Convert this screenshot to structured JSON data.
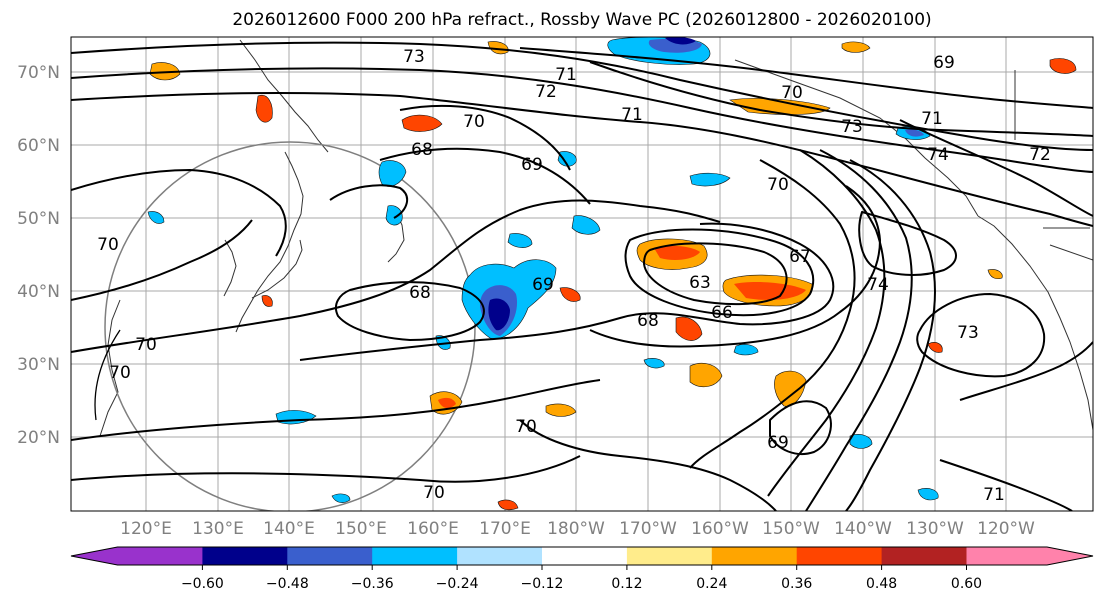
{
  "figure": {
    "title": "2026012600 F000 200 hPa refract., Rossby Wave PC (2026012800 - 2026020100)"
  },
  "axes": {
    "lat_labels": [
      "70°N",
      "60°N",
      "50°N",
      "40°N",
      "30°N",
      "20°N"
    ],
    "lon_labels": [
      "120°E",
      "130°E",
      "140°E",
      "150°E",
      "160°E",
      "170°E",
      "180°W",
      "170°W",
      "160°W",
      "150°W",
      "140°W",
      "130°W",
      "120°W"
    ]
  },
  "contour_labels": [
    "73",
    "71",
    "72",
    "70",
    "71",
    "70",
    "73",
    "71",
    "69",
    "68",
    "69",
    "70",
    "74",
    "72",
    "70",
    "68",
    "69",
    "67",
    "74",
    "63",
    "66",
    "68",
    "73",
    "70",
    "70",
    "70",
    "69",
    "70",
    "71"
  ],
  "colorbar": {
    "colors": [
      "#9932cc",
      "#00008b",
      "#3a5fcd",
      "#00bfff",
      "#b0e2ff",
      "#ffffff",
      "#ffec8b",
      "#ffa500",
      "#ff4500",
      "#b22222",
      "#ff82ab"
    ],
    "tick_labels": [
      "−0.60",
      "−0.48",
      "−0.36",
      "−0.24",
      "−0.12",
      "0.12",
      "0.24",
      "0.36",
      "0.48",
      "0.60"
    ]
  }
}
